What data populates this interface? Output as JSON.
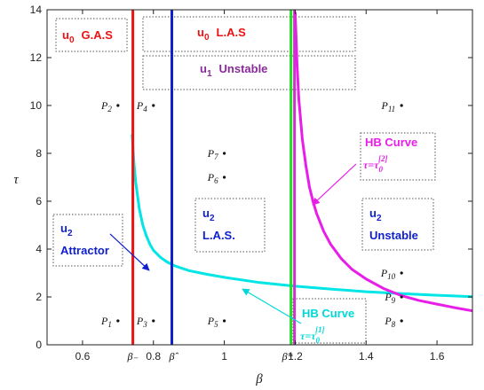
{
  "chart_data": {
    "type": "line",
    "xlabel": "β",
    "ylabel": "τ",
    "xlim": [
      0.5,
      1.7
    ],
    "ylim": [
      0,
      14
    ],
    "x_ticks": [
      "0.6",
      "0.8",
      "1",
      "1.2",
      "1.4",
      "1.6"
    ],
    "x_tick_values": [
      0.6,
      0.8,
      1.0,
      1.2,
      1.4,
      1.6
    ],
    "y_ticks": [
      "0",
      "2",
      "4",
      "6",
      "8",
      "10",
      "12",
      "14"
    ],
    "y_tick_values": [
      0,
      2,
      4,
      6,
      8,
      10,
      12,
      14
    ],
    "grid": false,
    "vlines": [
      {
        "name": "β₋",
        "x": 0.742,
        "color": "#ee1111",
        "label": "β₋"
      },
      {
        "name": "β̂",
        "x": 0.852,
        "color": "#1020d0",
        "label": "β̂"
      },
      {
        "name": "β*",
        "x": 1.188,
        "color": "#22dd22",
        "label": "β*"
      },
      {
        "name": "",
        "x": 1.198,
        "color": "#cc33cc",
        "label": ""
      }
    ],
    "curves": [
      {
        "name": "HB Curve τ=τ0[1]",
        "color": "#00e5e5",
        "x": [
          0.74,
          0.745,
          0.75,
          0.76,
          0.77,
          0.78,
          0.79,
          0.8,
          0.82,
          0.84,
          0.86,
          0.9,
          0.95,
          1.0,
          1.1,
          1.2,
          1.3,
          1.4,
          1.5,
          1.6,
          1.7
        ],
        "y": [
          8.8,
          7.6,
          6.8,
          5.7,
          5.0,
          4.55,
          4.2,
          3.95,
          3.65,
          3.45,
          3.3,
          3.1,
          2.95,
          2.82,
          2.6,
          2.45,
          2.33,
          2.22,
          2.14,
          2.07,
          2.01
        ]
      },
      {
        "name": "HB Curve τ=τ0[2]",
        "color": "#e81ee8",
        "x": [
          1.2,
          1.205,
          1.21,
          1.22,
          1.23,
          1.24,
          1.25,
          1.26,
          1.28,
          1.3,
          1.33,
          1.36,
          1.4,
          1.45,
          1.5,
          1.55,
          1.6,
          1.65,
          1.7
        ],
        "y": [
          13.9,
          11.8,
          10.3,
          8.6,
          7.5,
          6.6,
          6.0,
          5.5,
          4.75,
          4.2,
          3.6,
          3.15,
          2.75,
          2.35,
          2.05,
          1.85,
          1.7,
          1.55,
          1.42
        ]
      }
    ],
    "points": [
      {
        "label": "P",
        "sub": "1",
        "x": 0.7,
        "y": 1
      },
      {
        "label": "P",
        "sub": "2",
        "x": 0.7,
        "y": 10
      },
      {
        "label": "P",
        "sub": "3",
        "x": 0.8,
        "y": 1
      },
      {
        "label": "P",
        "sub": "4",
        "x": 0.8,
        "y": 10
      },
      {
        "label": "P",
        "sub": "5",
        "x": 1.0,
        "y": 1
      },
      {
        "label": "P",
        "sub": "6",
        "x": 1.0,
        "y": 7
      },
      {
        "label": "P",
        "sub": "7",
        "x": 1.0,
        "y": 8
      },
      {
        "label": "P",
        "sub": "8",
        "x": 1.5,
        "y": 1
      },
      {
        "label": "P",
        "sub": "9",
        "x": 1.5,
        "y": 2
      },
      {
        "label": "P",
        "sub": "10",
        "x": 1.5,
        "y": 3
      },
      {
        "label": "P",
        "sub": "11",
        "x": 1.5,
        "y": 10
      }
    ],
    "annotations": {
      "u0_gas": {
        "pre": "u",
        "sub": "0",
        "text": "G.A.S",
        "color": "#ee1111"
      },
      "u0_las": {
        "pre": "u",
        "sub": "0",
        "text": "L.A.S",
        "color": "#ee1111"
      },
      "u1_unstable": {
        "pre": "u",
        "sub": "1",
        "text": "Unstable",
        "color": "#8a2a9a"
      },
      "u2_attractor": {
        "pre": "u",
        "sub": "2",
        "text": "Attractor",
        "color": "#1020d0"
      },
      "u2_las": {
        "pre": "u",
        "sub": "2",
        "text": "L.A.S.",
        "color": "#1020d0"
      },
      "u2_unstable": {
        "pre": "u",
        "sub": "2",
        "text": "Unstable",
        "color": "#1020d0"
      },
      "hb2": {
        "title": "HB Curve",
        "eq": "τ=τ",
        "sub": "0",
        "sup": "[2]",
        "color": "#e81ee8"
      },
      "hb1": {
        "title": "HB Curve",
        "eq": "τ=τ",
        "sub": "0",
        "sup": "[1]",
        "color": "#00d8d8"
      }
    }
  }
}
